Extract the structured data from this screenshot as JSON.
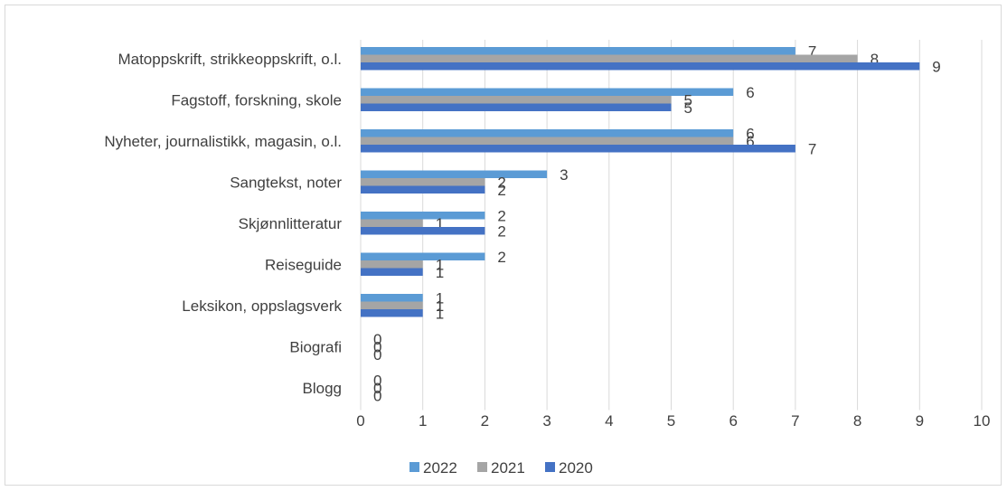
{
  "chart_data": {
    "type": "bar",
    "orientation": "horizontal",
    "categories": [
      "Matoppskrift, strikkeoppskrift, o.l.",
      "Fagstoff, forskning, skole",
      "Nyheter,  journalistikk, magasin, o.l.",
      "Sangtekst, noter ",
      "Skjønnlitteratur",
      "Reiseguide",
      "Leksikon, oppslagsverk",
      "Biografi",
      "Blogg"
    ],
    "series": [
      {
        "name": "2022",
        "color": "#5b9bd5",
        "values": [
          7,
          6,
          6,
          3,
          2,
          2,
          1,
          0,
          0
        ]
      },
      {
        "name": "2021",
        "color": "#a5a5a5",
        "values": [
          8,
          5,
          6,
          2,
          1,
          1,
          1,
          0,
          0
        ]
      },
      {
        "name": "2020",
        "color": "#4472c4",
        "values": [
          9,
          5,
          7,
          2,
          2,
          1,
          1,
          0,
          0
        ]
      }
    ],
    "xlim": [
      0,
      10
    ],
    "xticks": [
      "0",
      "1",
      "2",
      "3",
      "4",
      "5",
      "6",
      "7",
      "8",
      "9",
      "10"
    ],
    "grid": true,
    "legend": "bottom",
    "title": "",
    "xlabel": "",
    "ylabel": ""
  }
}
